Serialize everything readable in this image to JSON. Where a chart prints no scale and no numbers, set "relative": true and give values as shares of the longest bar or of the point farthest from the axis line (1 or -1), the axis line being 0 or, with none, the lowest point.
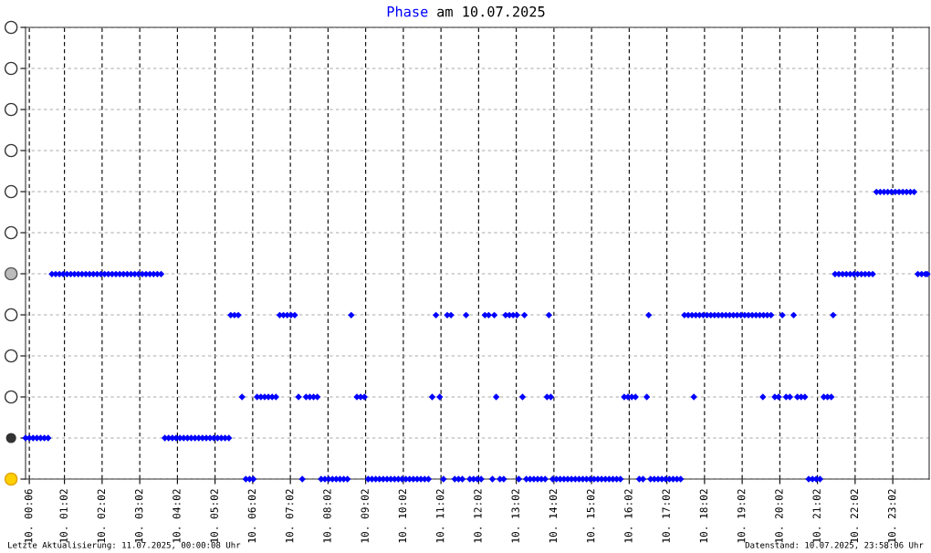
{
  "chart_data": {
    "type": "scatter",
    "title": "Phase am 10.07.2025",
    "annotations": [
      "Letzte Aktualisierung: 11.07.2025, 00:00:08 Uhr",
      "Datenstand: 10.07.2025, 23:58:06 Uhr"
    ],
    "xlim": [
      "2025-07-10T00:00",
      "2025-07-11T00:00"
    ],
    "xticks": [
      {
        "value": "2025-07-10T00:06",
        "label": "10. 00:06"
      },
      {
        "value": "2025-07-10T01:02",
        "label": "10. 01:02"
      },
      {
        "value": "2025-07-10T02:02",
        "label": "10. 02:02"
      },
      {
        "value": "2025-07-10T03:02",
        "label": "10. 03:02"
      },
      {
        "value": "2025-07-10T04:02",
        "label": "10. 04:02"
      },
      {
        "value": "2025-07-10T05:02",
        "label": "10. 05:02"
      },
      {
        "value": "2025-07-10T06:02",
        "label": "10. 06:02"
      },
      {
        "value": "2025-07-10T07:02",
        "label": "10. 07:02"
      },
      {
        "value": "2025-07-10T08:02",
        "label": "10. 08:02"
      },
      {
        "value": "2025-07-10T09:02",
        "label": "10. 09:02"
      },
      {
        "value": "2025-07-10T10:02",
        "label": "10. 10:02"
      },
      {
        "value": "2025-07-10T11:02",
        "label": "10. 11:02"
      },
      {
        "value": "2025-07-10T12:02",
        "label": "10. 12:02"
      },
      {
        "value": "2025-07-10T13:02",
        "label": "10. 13:02"
      },
      {
        "value": "2025-07-10T14:02",
        "label": "10. 14:02"
      },
      {
        "value": "2025-07-10T15:02",
        "label": "10. 15:02"
      },
      {
        "value": "2025-07-10T16:02",
        "label": "10. 16:02"
      },
      {
        "value": "2025-07-10T17:02",
        "label": "10. 17:02"
      },
      {
        "value": "2025-07-10T18:02",
        "label": "10. 18:02"
      },
      {
        "value": "2025-07-10T19:02",
        "label": "10. 19:02"
      },
      {
        "value": "2025-07-10T20:02",
        "label": "10. 20:02"
      },
      {
        "value": "2025-07-10T21:02",
        "label": "10. 21:02"
      },
      {
        "value": "2025-07-10T22:02",
        "label": "10. 22:02"
      },
      {
        "value": "2025-07-10T23:02",
        "label": "10. 23:02"
      }
    ],
    "relative": true,
    "grid": true,
    "marker": "diamond",
    "tick_labels": "x",
    "series": [
      {
        "color": "#0000ff",
        "x": [
          "2025-07-10T00:00",
          "2025-07-10T00:06",
          "2025-07-10T00:12",
          "2025-07-10T00:18",
          "2025-07-10T00:24",
          "2025-07-10T00:30",
          "2025-07-10T00:36",
          "2025-07-10T00:42",
          "2025-07-10T00:48",
          "2025-07-10T00:54",
          "2025-07-10T01:00",
          "2025-07-10T01:06",
          "2025-07-10T01:12",
          "2025-07-10T01:18",
          "2025-07-10T01:24",
          "2025-07-10T01:30",
          "2025-07-10T01:36",
          "2025-07-10T01:42",
          "2025-07-10T01:48",
          "2025-07-10T01:54",
          "2025-07-10T02:00",
          "2025-07-10T02:06",
          "2025-07-10T02:12",
          "2025-07-10T02:18",
          "2025-07-10T02:24",
          "2025-07-10T02:30",
          "2025-07-10T02:36",
          "2025-07-10T02:42",
          "2025-07-10T02:48",
          "2025-07-10T02:54",
          "2025-07-10T03:00",
          "2025-07-10T03:06",
          "2025-07-10T03:12",
          "2025-07-10T03:18",
          "2025-07-10T03:24",
          "2025-07-10T03:30",
          "2025-07-10T03:36",
          "2025-07-10T03:42",
          "2025-07-10T03:48",
          "2025-07-10T03:54",
          "2025-07-10T04:00",
          "2025-07-10T04:06",
          "2025-07-10T04:12",
          "2025-07-10T04:18",
          "2025-07-10T04:24",
          "2025-07-10T04:30",
          "2025-07-10T04:36",
          "2025-07-10T04:42",
          "2025-07-10T04:48",
          "2025-07-10T04:54",
          "2025-07-10T05:00",
          "2025-07-10T05:06",
          "2025-07-10T05:12",
          "2025-07-10T05:18",
          "2025-07-10T05:24",
          "2025-07-10T05:27",
          "2025-07-10T05:33",
          "2025-07-10T05:39",
          "2025-07-10T05:45",
          "2025-07-10T05:51",
          "2025-07-10T05:57",
          "2025-07-10T06:03",
          "2025-07-10T06:09",
          "2025-07-10T06:15",
          "2025-07-10T06:21",
          "2025-07-10T06:27",
          "2025-07-10T06:33",
          "2025-07-10T06:39",
          "2025-07-10T06:45",
          "2025-07-10T06:51",
          "2025-07-10T06:57",
          "2025-07-10T07:03",
          "2025-07-10T07:09",
          "2025-07-10T07:15",
          "2025-07-10T07:21",
          "2025-07-10T07:27",
          "2025-07-10T07:33",
          "2025-07-10T07:39",
          "2025-07-10T07:45",
          "2025-07-10T07:51",
          "2025-07-10T07:57",
          "2025-07-10T08:03",
          "2025-07-10T08:09",
          "2025-07-10T08:15",
          "2025-07-10T08:21",
          "2025-07-10T08:27",
          "2025-07-10T08:33",
          "2025-07-10T08:39",
          "2025-07-10T08:48",
          "2025-07-10T08:54",
          "2025-07-10T09:00",
          "2025-07-10T09:06",
          "2025-07-10T09:12",
          "2025-07-10T09:18",
          "2025-07-10T09:24",
          "2025-07-10T09:30",
          "2025-07-10T09:36",
          "2025-07-10T09:42",
          "2025-07-10T09:48",
          "2025-07-10T09:54",
          "2025-07-10T10:00",
          "2025-07-10T10:06",
          "2025-07-10T10:12",
          "2025-07-10T10:18",
          "2025-07-10T10:24",
          "2025-07-10T10:30",
          "2025-07-10T10:36",
          "2025-07-10T10:42",
          "2025-07-10T10:48",
          "2025-07-10T10:54",
          "2025-07-10T11:00",
          "2025-07-10T11:06",
          "2025-07-10T11:12",
          "2025-07-10T11:18",
          "2025-07-10T11:24",
          "2025-07-10T11:30",
          "2025-07-10T11:36",
          "2025-07-10T11:42",
          "2025-07-10T11:48",
          "2025-07-10T11:54",
          "2025-07-10T12:00",
          "2025-07-10T12:06",
          "2025-07-10T12:12",
          "2025-07-10T12:18",
          "2025-07-10T12:24",
          "2025-07-10T12:27",
          "2025-07-10T12:30",
          "2025-07-10T12:36",
          "2025-07-10T12:42",
          "2025-07-10T12:45",
          "2025-07-10T12:51",
          "2025-07-10T12:57",
          "2025-07-10T13:03",
          "2025-07-10T13:06",
          "2025-07-10T13:12",
          "2025-07-10T13:15",
          "2025-07-10T13:18",
          "2025-07-10T13:24",
          "2025-07-10T13:30",
          "2025-07-10T13:36",
          "2025-07-10T13:42",
          "2025-07-10T13:48",
          "2025-07-10T13:51",
          "2025-07-10T13:54",
          "2025-07-10T13:57",
          "2025-07-10T14:00",
          "2025-07-10T14:06",
          "2025-07-10T14:12",
          "2025-07-10T14:18",
          "2025-07-10T14:24",
          "2025-07-10T14:30",
          "2025-07-10T14:36",
          "2025-07-10T14:42",
          "2025-07-10T14:48",
          "2025-07-10T14:54",
          "2025-07-10T15:00",
          "2025-07-10T15:06",
          "2025-07-10T15:12",
          "2025-07-10T15:18",
          "2025-07-10T15:24",
          "2025-07-10T15:30",
          "2025-07-10T15:36",
          "2025-07-10T15:42",
          "2025-07-10T15:48",
          "2025-07-10T15:54",
          "2025-07-10T16:00",
          "2025-07-10T16:06",
          "2025-07-10T16:12",
          "2025-07-10T16:18",
          "2025-07-10T16:24",
          "2025-07-10T16:30",
          "2025-07-10T16:33",
          "2025-07-10T16:36",
          "2025-07-10T16:42",
          "2025-07-10T16:48",
          "2025-07-10T16:54",
          "2025-07-10T17:00",
          "2025-07-10T17:06",
          "2025-07-10T17:12",
          "2025-07-10T17:18",
          "2025-07-10T17:24",
          "2025-07-10T17:30",
          "2025-07-10T17:36",
          "2025-07-10T17:42",
          "2025-07-10T17:45",
          "2025-07-10T17:48",
          "2025-07-10T17:54",
          "2025-07-10T18:00",
          "2025-07-10T18:06",
          "2025-07-10T18:12",
          "2025-07-10T18:18",
          "2025-07-10T18:24",
          "2025-07-10T18:30",
          "2025-07-10T18:36",
          "2025-07-10T18:42",
          "2025-07-10T18:48",
          "2025-07-10T18:54",
          "2025-07-10T19:00",
          "2025-07-10T19:06",
          "2025-07-10T19:12",
          "2025-07-10T19:18",
          "2025-07-10T19:24",
          "2025-07-10T19:30",
          "2025-07-10T19:36",
          "2025-07-10T19:42",
          "2025-07-10T19:48",
          "2025-07-10T19:35",
          "2025-07-10T19:54",
          "2025-07-10T20:00",
          "2025-07-10T20:06",
          "2025-07-10T20:12",
          "2025-07-10T20:18",
          "2025-07-10T20:24",
          "2025-07-10T20:30",
          "2025-07-10T20:36",
          "2025-07-10T20:42",
          "2025-07-10T20:48",
          "2025-07-10T20:54",
          "2025-07-10T21:00",
          "2025-07-10T21:06",
          "2025-07-10T21:12",
          "2025-07-10T21:18",
          "2025-07-10T21:24",
          "2025-07-10T21:27",
          "2025-07-10T21:30",
          "2025-07-10T21:36",
          "2025-07-10T21:42",
          "2025-07-10T21:48",
          "2025-07-10T21:54",
          "2025-07-10T22:00",
          "2025-07-10T22:06",
          "2025-07-10T22:12",
          "2025-07-10T22:18",
          "2025-07-10T22:24",
          "2025-07-10T22:30",
          "2025-07-10T22:36",
          "2025-07-10T22:42",
          "2025-07-10T22:48",
          "2025-07-10T22:54",
          "2025-07-10T23:00",
          "2025-07-10T23:06",
          "2025-07-10T23:12",
          "2025-07-10T23:18",
          "2025-07-10T23:24",
          "2025-07-10T23:30",
          "2025-07-10T23:36",
          "2025-07-10T23:42",
          "2025-07-10T23:48",
          "2025-07-10T23:54",
          "2025-07-10T23:57"
        ],
        "values": [
          0.143,
          0.143,
          0.143,
          0.143,
          0.143,
          0.143,
          0.143,
          0.714,
          0.714,
          0.714,
          0.714,
          0.714,
          0.714,
          0.714,
          0.714,
          0.714,
          0.714,
          0.714,
          0.714,
          0.714,
          0.714,
          0.714,
          0.714,
          0.714,
          0.714,
          0.714,
          0.714,
          0.714,
          0.714,
          0.714,
          0.714,
          0.714,
          0.714,
          0.714,
          0.714,
          0.714,
          0.714,
          0.143,
          0.143,
          0.143,
          0.143,
          0.143,
          0.143,
          0.143,
          0.143,
          0.143,
          0.143,
          0.143,
          0.143,
          0.143,
          0.143,
          0.143,
          0.143,
          0.143,
          0.143,
          0.571,
          0.571,
          0.571,
          0.286,
          0,
          0,
          0,
          0.286,
          0.286,
          0.286,
          0.286,
          0.286,
          0.286,
          0.571,
          0.571,
          0.571,
          0.571,
          0.571,
          0.286,
          0,
          0.286,
          0.286,
          0.286,
          0.286,
          0,
          0,
          0,
          0,
          0,
          0,
          0,
          0,
          0.571,
          0.286,
          0.286,
          0.286,
          0,
          0,
          0,
          0,
          0,
          0,
          0,
          0,
          0,
          0,
          0,
          0,
          0,
          0,
          0,
          0,
          0,
          0.286,
          0.571,
          0.286,
          0,
          0.571,
          0.571,
          0,
          0,
          0,
          0.571,
          0,
          0,
          0,
          0,
          0.571,
          0.571,
          0,
          0.571,
          0.286,
          0,
          0,
          0.571,
          0.571,
          0.571,
          0.571,
          0,
          0.286,
          0.571,
          0,
          0,
          0,
          0,
          0,
          0,
          0.286,
          0.571,
          0.286,
          0,
          0,
          0,
          0,
          0,
          0,
          0,
          0,
          0,
          0,
          0,
          0,
          0,
          0,
          0,
          0,
          0,
          0,
          0,
          0.286,
          0.286,
          0.286,
          0.286,
          0,
          0,
          0.286,
          0.571,
          0,
          0,
          0,
          0,
          0,
          0,
          0,
          0,
          0,
          0.571,
          0.571,
          0.571,
          0.286,
          0.571,
          0.571,
          0.571,
          0.571,
          0.571,
          0.571,
          0.571,
          0.571,
          0.571,
          0.571,
          0.571,
          0.571,
          0.571,
          0.571,
          0.571,
          0.571,
          0.571,
          0.571,
          0.571,
          0.571,
          0.571,
          0.286,
          0.286,
          0.286,
          0.571,
          0.286,
          0.286,
          0.571,
          0.286,
          0.286,
          0.286,
          0,
          0,
          0,
          0,
          0.286,
          0.286,
          0.286,
          0.571,
          0.714,
          0.714,
          0.714,
          0.714,
          0.714,
          0.714,
          0.714,
          0.714,
          0.714,
          0.714,
          0.714,
          1,
          1,
          1,
          1,
          1,
          1,
          1,
          1,
          1,
          1,
          1,
          0.714,
          0.714,
          0.714,
          0.714
        ]
      }
    ]
  }
}
